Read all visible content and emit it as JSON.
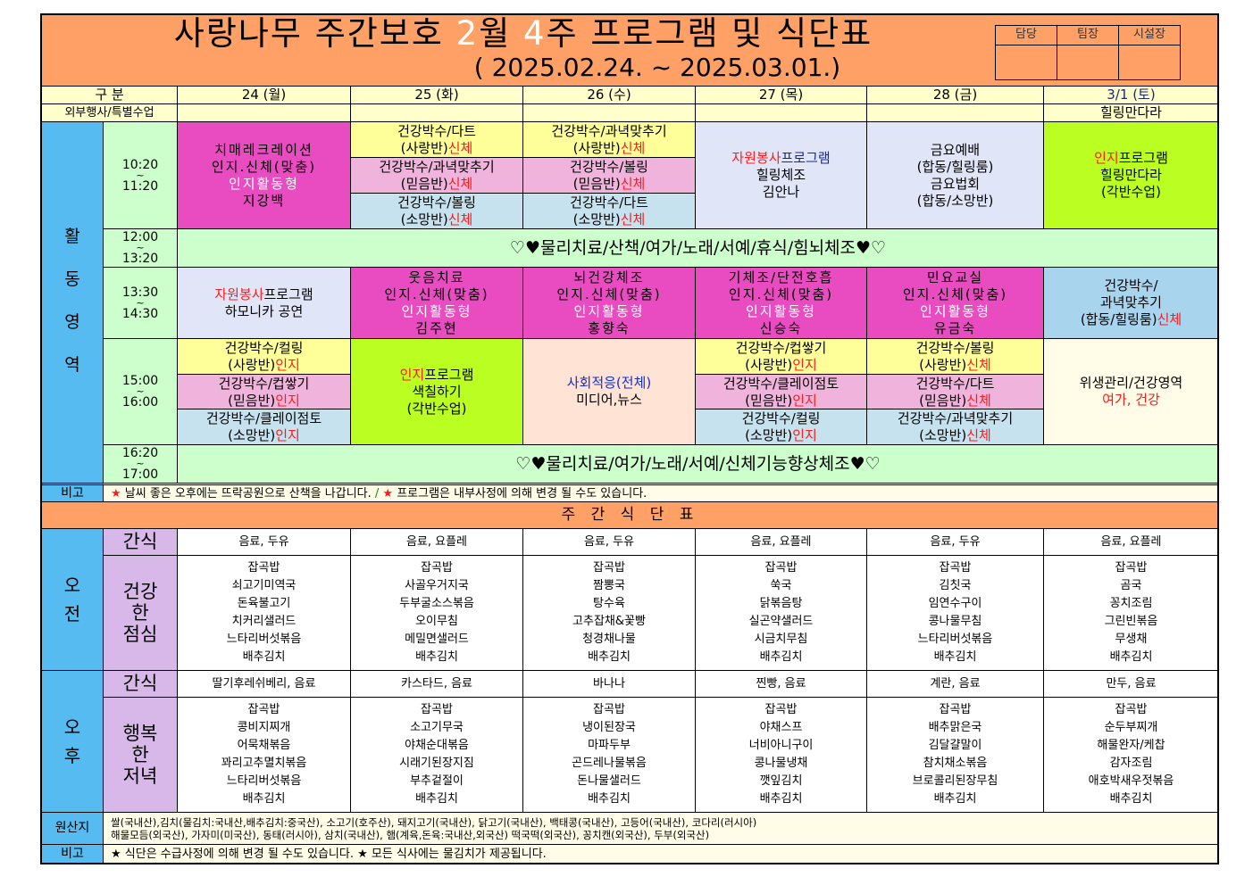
{
  "title": {
    "part1": "사랑나무 주간보호 ",
    "month": "2",
    "part2": "월 ",
    "week": "4",
    "part3": "주 프로그램 및 식단표",
    "period": "( 2025.02.24. ~ 2025.03.01.)"
  },
  "approval": [
    "담당",
    "팀장",
    "시설장"
  ],
  "header": {
    "category": "구  분",
    "days": [
      "24 (월)",
      "25 (화)",
      "26 (수)",
      "27 (목)",
      "28 (금)",
      "3/1 (토)"
    ]
  },
  "special": {
    "label": "외부행사/특별수업",
    "values": [
      "",
      "",
      "",
      "",
      "",
      "힐링만다라"
    ]
  },
  "activity_label": [
    "활",
    "동",
    "영",
    "역"
  ],
  "times": [
    [
      "10:20",
      "~",
      "11:20"
    ],
    [
      "12:00",
      "~",
      "13:20"
    ],
    [
      "13:30",
      "~",
      "14:30"
    ],
    [
      "15:00",
      "~",
      "16:00"
    ],
    [
      "16:20",
      "~",
      "17:00"
    ]
  ],
  "colors": {
    "orange": "#FFA066",
    "cream": "#FFFFCC",
    "blue": "#56BBF0",
    "time": "#CCFFCC",
    "magenta": "#E94CC0",
    "lavender": "#E0E6F8",
    "yellow": "#FFFF99",
    "pink": "#F0B4DC",
    "lightblue": "#C6E2EE",
    "lime": "#BBFF22",
    "peach": "#FFE4D6",
    "menu_label": "#D8B8E8",
    "red": "#FF1A1A"
  },
  "slot1": [
    {
      "bg": "magenta",
      "lines": [
        [
          {
            "t": "치매레크레이션"
          }
        ],
        [
          {
            "t": "인지.신체(맞춤)"
          }
        ],
        [
          {
            "t": "인지활동형",
            "c": "white"
          }
        ],
        [
          {
            "t": "지강백"
          }
        ]
      ]
    },
    {
      "subs": [
        {
          "bg": "yellow",
          "lines": [
            [
              {
                "t": "건강박수/다트"
              }
            ],
            [
              {
                "t": "(사랑반)"
              },
              {
                "t": "신체",
                "c": "red"
              }
            ]
          ]
        },
        {
          "bg": "pink",
          "lines": [
            [
              {
                "t": "건강박수/과녁맞추기"
              }
            ],
            [
              {
                "t": "(믿음반)"
              },
              {
                "t": "신체",
                "c": "red"
              }
            ]
          ]
        },
        {
          "bg": "lightblue",
          "lines": [
            [
              {
                "t": "건강박수/볼링"
              }
            ],
            [
              {
                "t": "(소망반)"
              },
              {
                "t": "신체",
                "c": "red"
              }
            ]
          ]
        }
      ]
    },
    {
      "subs": [
        {
          "bg": "yellow",
          "lines": [
            [
              {
                "t": "건강박수/과녁맞추기"
              }
            ],
            [
              {
                "t": "(사랑반)"
              },
              {
                "t": "신체",
                "c": "red"
              }
            ]
          ]
        },
        {
          "bg": "pink",
          "lines": [
            [
              {
                "t": "건강박수/볼링"
              }
            ],
            [
              {
                "t": "(믿음반)"
              },
              {
                "t": "신체",
                "c": "red"
              }
            ]
          ]
        },
        {
          "bg": "lightblue",
          "lines": [
            [
              {
                "t": "건강박수/다트"
              }
            ],
            [
              {
                "t": "(소망반)"
              },
              {
                "t": "신체",
                "c": "red"
              }
            ]
          ]
        }
      ]
    },
    {
      "bg": "lavender",
      "lines": [
        [
          {
            "t": "자원봉사",
            "c": "red"
          },
          {
            "t": "프로그램",
            "c": "navy"
          }
        ],
        [
          {
            "t": "힐링체조"
          }
        ],
        [
          {
            "t": "김안나"
          }
        ]
      ]
    },
    {
      "bg": "lavender",
      "lines": [
        [
          {
            "t": "금요예배"
          }
        ],
        [
          {
            "t": "(합동/힐링룸)"
          }
        ],
        [
          {
            "t": "금요법회"
          }
        ],
        [
          {
            "t": "(합동/소망반)"
          }
        ]
      ]
    },
    {
      "bg": "lime",
      "lines": [
        [
          {
            "t": "인지",
            "c": "red"
          },
          {
            "t": "프로그램"
          }
        ],
        [
          {
            "t": "힐링만다라"
          }
        ],
        [
          {
            "t": "(각반수업)"
          }
        ]
      ]
    }
  ],
  "lunch_activity": "♡♥물리치료/산책/여가/노래/서예/휴식/힘뇌체조♥♡",
  "slot2": [
    {
      "bg": "lavender",
      "lines": [
        [
          {
            "t": "자원봉사",
            "c": "red"
          },
          {
            "t": "프로그램"
          }
        ],
        [
          {
            "t": "하모니카 공연"
          }
        ]
      ]
    },
    {
      "bg": "magenta",
      "lines": [
        [
          {
            "t": "웃음치료"
          }
        ],
        [
          {
            "t": "인지.신체(맞춤)"
          }
        ],
        [
          {
            "t": "인지활동형",
            "c": "white"
          }
        ],
        [
          {
            "t": "김주현"
          }
        ]
      ]
    },
    {
      "bg": "magenta",
      "lines": [
        [
          {
            "t": "뇌건강체조"
          }
        ],
        [
          {
            "t": "인지.신체(맞춤)"
          }
        ],
        [
          {
            "t": "인지활동형",
            "c": "white"
          }
        ],
        [
          {
            "t": "홍향숙"
          }
        ]
      ]
    },
    {
      "bg": "magenta",
      "lines": [
        [
          {
            "t": "기체조/단전호흡"
          }
        ],
        [
          {
            "t": "인지.신체(맞춤)"
          }
        ],
        [
          {
            "t": "인지활동형",
            "c": "white"
          }
        ],
        [
          {
            "t": "신승숙"
          }
        ]
      ]
    },
    {
      "bg": "magenta",
      "lines": [
        [
          {
            "t": "민요교실"
          }
        ],
        [
          {
            "t": "인지.신체(맞춤)"
          }
        ],
        [
          {
            "t": "인지활동형",
            "c": "white"
          }
        ],
        [
          {
            "t": "유금숙"
          }
        ]
      ]
    },
    {
      "bg": "skyblue",
      "lines": [
        [
          {
            "t": "건강박수/"
          }
        ],
        [
          {
            "t": "과녁맞추기"
          }
        ],
        [
          {
            "t": "(합동/힐링룸)"
          },
          {
            "t": "신체",
            "c": "red"
          }
        ]
      ]
    }
  ],
  "slot3": [
    {
      "subs": [
        {
          "bg": "yellow",
          "lines": [
            [
              {
                "t": "건강박수/컬링"
              }
            ],
            [
              {
                "t": "(사랑반)"
              },
              {
                "t": "인지",
                "c": "red"
              }
            ]
          ]
        },
        {
          "bg": "pink",
          "lines": [
            [
              {
                "t": "건강박수/컵쌓기"
              }
            ],
            [
              {
                "t": "(믿음반)"
              },
              {
                "t": "인지",
                "c": "red"
              }
            ]
          ]
        },
        {
          "bg": "lightblue",
          "lines": [
            [
              {
                "t": "건강박수/클레이점토"
              }
            ],
            [
              {
                "t": "(소망반)"
              },
              {
                "t": "인지",
                "c": "red"
              }
            ]
          ]
        }
      ]
    },
    {
      "bg": "lime",
      "lines": [
        [
          {
            "t": "인지",
            "c": "red"
          },
          {
            "t": "프로그램"
          }
        ],
        [
          {
            "t": "색칠하기"
          }
        ],
        [
          {
            "t": "(각반수업)"
          }
        ]
      ]
    },
    {
      "bg": "peach",
      "lines": [
        [
          {
            "t": "사회적응(전체)",
            "c": "blue"
          }
        ],
        [
          {
            "t": "미디어,뉴스"
          }
        ]
      ]
    },
    {
      "subs": [
        {
          "bg": "yellow",
          "lines": [
            [
              {
                "t": "건강박수/컵쌓기"
              }
            ],
            [
              {
                "t": "(사랑반)"
              },
              {
                "t": "인지",
                "c": "red"
              }
            ]
          ]
        },
        {
          "bg": "pink",
          "lines": [
            [
              {
                "t": "건강박수/클레이점토"
              }
            ],
            [
              {
                "t": "(믿음반)"
              },
              {
                "t": "인지",
                "c": "red"
              }
            ]
          ]
        },
        {
          "bg": "lightblue",
          "lines": [
            [
              {
                "t": "건강박수/컬링"
              }
            ],
            [
              {
                "t": "(소망반)"
              },
              {
                "t": "인지",
                "c": "red"
              }
            ]
          ]
        }
      ]
    },
    {
      "subs": [
        {
          "bg": "yellow",
          "lines": [
            [
              {
                "t": "건강박수/볼링"
              }
            ],
            [
              {
                "t": "(사랑반)"
              },
              {
                "t": "신체",
                "c": "red"
              }
            ]
          ]
        },
        {
          "bg": "pink",
          "lines": [
            [
              {
                "t": "건강박수/다트"
              }
            ],
            [
              {
                "t": "(믿음반)"
              },
              {
                "t": "신체",
                "c": "red"
              }
            ]
          ]
        },
        {
          "bg": "lightblue",
          "lines": [
            [
              {
                "t": "건강박수/과녁맞추기"
              }
            ],
            [
              {
                "t": "(소망반)"
              },
              {
                "t": "신체",
                "c": "red"
              }
            ]
          ]
        }
      ]
    },
    {
      "bg": "ivory",
      "lines": [
        [
          {
            "t": "위생관리/건강영역"
          }
        ],
        [
          {
            "t": "여가, 건강",
            "c": "red"
          }
        ]
      ]
    }
  ],
  "evening_activity": "♡♥물리치료/여가/노래/서예/신체기능향상체조♥♡",
  "note1": {
    "label": "비고",
    "star1": "★",
    "text1": " 날씨 좋은 오후에는 뜨락공원으로 산책을 나갑니다. ",
    "slash": "/",
    "star2": " ★",
    "text2": " 프로그램은 내부사정에 의해 변경 될 수도 있습니다."
  },
  "menu_title": "주  간  식  단  표",
  "menu": {
    "am_label": [
      "오",
      "전"
    ],
    "pm_label": [
      "오",
      "후"
    ],
    "snack_label": "간식",
    "lunch_label": [
      "건강",
      "한",
      "점심"
    ],
    "dinner_label": [
      "행복",
      "한",
      "저녁"
    ],
    "am_snack": [
      "음료, 두유",
      "음료, 요플레",
      "음료, 두유",
      "음료, 요플레",
      "음료, 두유",
      "음료, 요플레"
    ],
    "lunch": [
      [
        "잡곡밥",
        "쇠고기미역국",
        "돈육불고기",
        "치커리샐러드",
        "느타리버섯볶음",
        "배추김치"
      ],
      [
        "잡곡밥",
        "사골우거지국",
        "두부굴소스볶음",
        "오이무침",
        "메밀면샐러드",
        "배추김치"
      ],
      [
        "잡곡밥",
        "짬뽕국",
        "탕수육",
        "고추잡채&꽃빵",
        "청경채나물",
        "배추김치"
      ],
      [
        "잡곡밥",
        "쑥국",
        "닭볶음탕",
        "실곤약샐러드",
        "시금치무침",
        "배추김치"
      ],
      [
        "잡곡밥",
        "김칫국",
        "임연수구이",
        "콩나물무침",
        "느타리버섯볶음",
        "배추김치"
      ],
      [
        "잡곡밥",
        "곰국",
        "꽁치조림",
        "그린빈볶음",
        "무생채",
        "배추김치"
      ]
    ],
    "pm_snack": [
      "딸기후레쉬베리, 음료",
      "카스타드, 음료",
      "바나나",
      "찐빵, 음료",
      "계란, 음료",
      "만두, 음료"
    ],
    "dinner": [
      [
        "잡곡밥",
        "콩비지찌개",
        "어묵채볶음",
        "꽈리고추멸치볶음",
        "느타리버섯볶음",
        "배추김치"
      ],
      [
        "잡곡밥",
        "소고기무국",
        "야채순대볶음",
        "시래기된장지짐",
        "부추겉절이",
        "배추김치"
      ],
      [
        "잡곡밥",
        "냉이된장국",
        "마파두부",
        "곤드레나물볶음",
        "돈나물샐러드",
        "배추김치"
      ],
      [
        "잡곡밥",
        "야채스프",
        "너비아니구이",
        "콩나물냉채",
        "깻잎김치",
        "배추김치"
      ],
      [
        "잡곡밥",
        "배추맑은국",
        "김달걀말이",
        "참치채소볶음",
        "브로콜리된장무침",
        "배추김치"
      ],
      [
        "잡곡밥",
        "순두부찌개",
        "해물완자/케찹",
        "감자조림",
        "애호박새우젓볶음",
        "배추김치"
      ]
    ]
  },
  "origin": {
    "label": "원산지",
    "line1": "쌀(국내산),김치(물김치:국내산,배추김치:중국산), 소고기(호주산), 돼지고기(국내산), 닭고기(국내산), 백태콩(국내산), 고등어(국내산), 코다리(러시아)",
    "line2": "해물모듬(외국산), 가자미(미국산), 동태(러시아), 삼치(국내산), 햄(계육,돈육:국내산,외국산) 떡국떡(외국산), 꽁치캔(외국산), 두부(외국산)"
  },
  "note2": {
    "label": "비고",
    "text": "★ 식단은 수급사정에 의해 변경 될 수도 있습니다. ★ 모든 식사에는 물김치가 제공됩니다."
  }
}
